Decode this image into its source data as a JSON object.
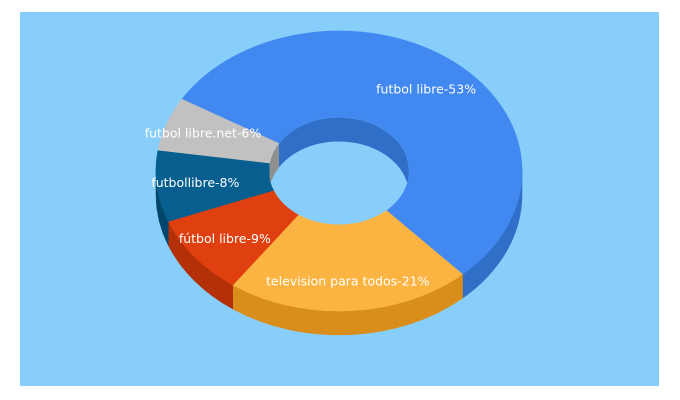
{
  "chart_data": {
    "type": "pie",
    "variant": "3d-donut",
    "background_color": "#87cefa",
    "slices": [
      {
        "label": "futbol libre-53%",
        "value": 53,
        "color": "#4189f0",
        "side_color": "#2f6fc8"
      },
      {
        "label": "television para todos-21%",
        "value": 21,
        "color": "#fbb442",
        "side_color": "#d98e1c"
      },
      {
        "label": "fútbol libre-9%",
        "value": 9,
        "color": "#e0400f",
        "side_color": "#b33008"
      },
      {
        "label": "futbollibre-8%",
        "value": 8,
        "color": "#075f8f",
        "side_color": "#04466b"
      },
      {
        "label": "futbol libre.net-6%",
        "value": 6,
        "color": "#c1c1c1",
        "side_color": "#8f8f8f"
      }
    ]
  }
}
